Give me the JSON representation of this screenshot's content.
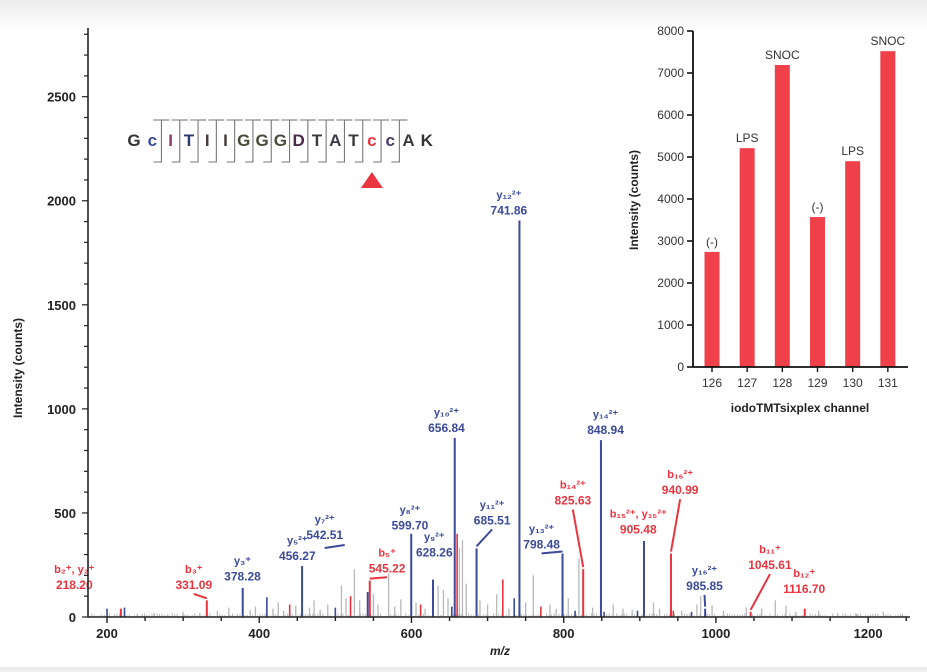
{
  "chart_data": [
    {
      "type": "bar",
      "subtype": "mass-spectrum-stick",
      "title": "",
      "xlabel": "m/z",
      "ylabel": "Intensity (counts)",
      "xlim": [
        175,
        1255
      ],
      "ylim": [
        0,
        2830
      ],
      "x_ticks": [
        200,
        400,
        600,
        800,
        1000,
        1200
      ],
      "x_minor_step": 50,
      "y_ticks": [
        0,
        500,
        1000,
        1500,
        2000,
        2500
      ],
      "y_minor_step": 100,
      "grid": false,
      "colors": {
        "y_ion": "#3b4a9a",
        "b_ion": "#e8353f",
        "noise": "#b8b8b8",
        "axis": "#222222"
      },
      "peptide": {
        "residues": [
          "G",
          "c",
          "I",
          "T",
          "I",
          "I",
          "G",
          "G",
          "G",
          "D",
          "T",
          "A",
          "T",
          "c",
          "c",
          "A",
          "K"
        ],
        "highlight_index": 13,
        "highlight_color": "#e8353f",
        "marker": "triangle-up",
        "residue_colors": [
          "#333",
          "#3b4a9a",
          "#8a3a6a",
          "#2a3a6a",
          "#4a3a3a",
          "#4a3a3a",
          "#4a4a3a",
          "#4a4a3a",
          "#4a4a3a",
          "#4a2a4a",
          "#3a3a3a",
          "#3a3a4a",
          "#3a3a3a",
          "#e8353f",
          "#4a3a6a",
          "#3a3a3a",
          "#333"
        ]
      },
      "annotated_peaks": [
        {
          "ion": "b₂⁺, y₂⁺",
          "mz": 218.2,
          "label": "218.20",
          "intensity": 40,
          "series": "b",
          "label_mz": 157,
          "label_int": 135
        },
        {
          "ion": "b₃⁺",
          "mz": 331.09,
          "label": "331.09",
          "intensity": 80,
          "series": "b",
          "label_mz": 314,
          "label_int": 135,
          "leader": true
        },
        {
          "ion": "y₃⁺",
          "mz": 378.28,
          "label": "378.28",
          "intensity": 140,
          "series": "y",
          "label_mz": 378,
          "label_int": 175
        },
        {
          "ion": "y₅²⁺",
          "mz": 456.27,
          "label": "456.27",
          "intensity": 245,
          "series": "y",
          "label_mz": 450,
          "label_int": 275
        },
        {
          "ion": "y₇²⁺",
          "mz": 542.51,
          "label": "542.51",
          "intensity": 120,
          "series": "y",
          "label_mz": 486,
          "label_int": 375,
          "leader": true
        },
        {
          "ion": "b₅⁺",
          "mz": 545.22,
          "label": "545.22",
          "intensity": 175,
          "series": "b",
          "label_mz": 568,
          "label_int": 215,
          "leader": true
        },
        {
          "ion": "y₈²⁺",
          "mz": 599.7,
          "label": "599.70",
          "intensity": 400,
          "series": "y",
          "label_mz": 598,
          "label_int": 420
        },
        {
          "ion": "y₉²⁺",
          "mz": 628.26,
          "label": "628.26",
          "intensity": 180,
          "series": "y",
          "label_mz": 630,
          "label_int": 290
        },
        {
          "ion": "y₁₀²⁺",
          "mz": 656.84,
          "label": "656.84",
          "intensity": 860,
          "series": "y",
          "label_mz": 646,
          "label_int": 890
        },
        {
          "ion": "y₁₁²⁺",
          "mz": 685.51,
          "label": "685.51",
          "intensity": 330,
          "series": "y",
          "label_mz": 706,
          "label_int": 445,
          "leader": true
        },
        {
          "ion": "y₁₂²⁺",
          "mz": 741.86,
          "label": "741.86",
          "intensity": 1905,
          "series": "y",
          "label_mz": 728,
          "label_int": 1935
        },
        {
          "ion": "y₁₃²⁺",
          "mz": 798.48,
          "label": "798.48",
          "intensity": 305,
          "series": "y",
          "label_mz": 771,
          "label_int": 330,
          "leader": true
        },
        {
          "ion": "b₁₄²⁺",
          "mz": 825.63,
          "label": "825.63",
          "intensity": 230,
          "series": "b",
          "label_mz": 812,
          "label_int": 540,
          "leader": true
        },
        {
          "ion": "y₁₄²⁺",
          "mz": 848.94,
          "label": "848.94",
          "intensity": 850,
          "series": "y",
          "label_mz": 855,
          "label_int": 880
        },
        {
          "ion": "b₁₅²⁺, y₁₅²⁺",
          "mz": 905.48,
          "label": "905.48",
          "intensity": 365,
          "series": "y",
          "label_mz": 898,
          "label_int": 400
        },
        {
          "ion": "b₁₆²⁺",
          "mz": 940.99,
          "label": "940.99",
          "intensity": 305,
          "series": "b",
          "label_mz": 953,
          "label_int": 590,
          "leader": true
        },
        {
          "ion": "y₁₆²⁺",
          "mz": 985.85,
          "label": "985.85",
          "intensity": 40,
          "series": "y",
          "label_mz": 985,
          "label_int": 130,
          "leader": true
        },
        {
          "ion": "b₁₁⁺",
          "mz": 1045.61,
          "label": "1045.61",
          "intensity": 25,
          "series": "b",
          "label_mz": 1071,
          "label_int": 230,
          "leader": true
        },
        {
          "ion": "b₁₂⁺",
          "mz": 1116.7,
          "label": "1116.70",
          "intensity": 40,
          "series": "b",
          "label_mz": 1116,
          "label_int": 115
        }
      ],
      "minor_peaks": [
        {
          "mz": 200,
          "intensity": 40,
          "series": "y"
        },
        {
          "mz": 223,
          "intensity": 45,
          "series": "y"
        },
        {
          "mz": 410,
          "intensity": 95,
          "series": "y"
        },
        {
          "mz": 440,
          "intensity": 60,
          "series": "b"
        },
        {
          "mz": 500,
          "intensity": 45,
          "series": "y"
        },
        {
          "mz": 520,
          "intensity": 100,
          "series": "b"
        },
        {
          "mz": 612,
          "intensity": 60,
          "series": "b"
        },
        {
          "mz": 653,
          "intensity": 50,
          "series": "y"
        },
        {
          "mz": 660,
          "intensity": 400,
          "series": "b"
        },
        {
          "mz": 720,
          "intensity": 180,
          "series": "b"
        },
        {
          "mz": 735,
          "intensity": 90,
          "series": "y"
        },
        {
          "mz": 770,
          "intensity": 50,
          "series": "b"
        },
        {
          "mz": 815,
          "intensity": 30,
          "series": "y"
        },
        {
          "mz": 853,
          "intensity": 25,
          "series": "y"
        },
        {
          "mz": 897,
          "intensity": 30,
          "series": "y"
        },
        {
          "mz": 944,
          "intensity": 30,
          "series": "b"
        },
        {
          "mz": 968,
          "intensity": 25,
          "series": "y"
        }
      ],
      "noise_peaks": [
        {
          "mz": 240,
          "intensity": 15
        },
        {
          "mz": 262,
          "intensity": 20
        },
        {
          "mz": 280,
          "intensity": 12
        },
        {
          "mz": 300,
          "intensity": 25
        },
        {
          "mz": 322,
          "intensity": 18
        },
        {
          "mz": 345,
          "intensity": 30
        },
        {
          "mz": 360,
          "intensity": 45
        },
        {
          "mz": 388,
          "intensity": 35
        },
        {
          "mz": 395,
          "intensity": 50
        },
        {
          "mz": 418,
          "intensity": 40
        },
        {
          "mz": 425,
          "intensity": 70
        },
        {
          "mz": 432,
          "intensity": 30
        },
        {
          "mz": 448,
          "intensity": 55
        },
        {
          "mz": 466,
          "intensity": 45
        },
        {
          "mz": 472,
          "intensity": 80
        },
        {
          "mz": 480,
          "intensity": 35
        },
        {
          "mz": 490,
          "intensity": 60
        },
        {
          "mz": 508,
          "intensity": 150
        },
        {
          "mz": 514,
          "intensity": 90
        },
        {
          "mz": 525,
          "intensity": 230
        },
        {
          "mz": 532,
          "intensity": 80
        },
        {
          "mz": 550,
          "intensity": 110
        },
        {
          "mz": 556,
          "intensity": 60
        },
        {
          "mz": 570,
          "intensity": 210
        },
        {
          "mz": 578,
          "intensity": 50
        },
        {
          "mz": 586,
          "intensity": 85
        },
        {
          "mz": 606,
          "intensity": 70
        },
        {
          "mz": 618,
          "intensity": 40
        },
        {
          "mz": 635,
          "intensity": 150
        },
        {
          "mz": 642,
          "intensity": 130
        },
        {
          "mz": 648,
          "intensity": 90
        },
        {
          "mz": 663,
          "intensity": 330
        },
        {
          "mz": 667,
          "intensity": 370
        },
        {
          "mz": 672,
          "intensity": 160
        },
        {
          "mz": 690,
          "intensity": 80
        },
        {
          "mz": 700,
          "intensity": 60
        },
        {
          "mz": 712,
          "intensity": 110
        },
        {
          "mz": 728,
          "intensity": 40
        },
        {
          "mz": 750,
          "intensity": 70
        },
        {
          "mz": 760,
          "intensity": 200
        },
        {
          "mz": 782,
          "intensity": 60
        },
        {
          "mz": 790,
          "intensity": 40
        },
        {
          "mz": 806,
          "intensity": 90
        },
        {
          "mz": 820,
          "intensity": 280
        },
        {
          "mz": 838,
          "intensity": 45
        },
        {
          "mz": 865,
          "intensity": 60
        },
        {
          "mz": 878,
          "intensity": 40
        },
        {
          "mz": 890,
          "intensity": 35
        },
        {
          "mz": 918,
          "intensity": 70
        },
        {
          "mz": 926,
          "intensity": 40
        },
        {
          "mz": 955,
          "intensity": 30
        },
        {
          "mz": 975,
          "intensity": 60
        },
        {
          "mz": 980,
          "intensity": 100
        },
        {
          "mz": 995,
          "intensity": 55
        },
        {
          "mz": 1010,
          "intensity": 30
        },
        {
          "mz": 1040,
          "intensity": 45
        },
        {
          "mz": 1060,
          "intensity": 40
        },
        {
          "mz": 1078,
          "intensity": 80
        },
        {
          "mz": 1092,
          "intensity": 55
        },
        {
          "mz": 1105,
          "intensity": 25
        },
        {
          "mz": 1135,
          "intensity": 30
        },
        {
          "mz": 1160,
          "intensity": 20
        },
        {
          "mz": 1185,
          "intensity": 15
        },
        {
          "mz": 1220,
          "intensity": 25
        },
        {
          "mz": 1245,
          "intensity": 15
        }
      ]
    },
    {
      "type": "bar",
      "title": "",
      "xlabel": "iodoTMTsixplex channel",
      "ylabel": "Intensity (counts)",
      "categories": [
        "126",
        "127",
        "128",
        "129",
        "130",
        "131"
      ],
      "values": [
        2740,
        5210,
        7190,
        3570,
        4900,
        7520
      ],
      "bar_labels": [
        "(-)",
        "LPS",
        "SNOC",
        "(-)",
        "LPS",
        "SNOC"
      ],
      "ylim": [
        0,
        8000
      ],
      "y_ticks": [
        0,
        1000,
        2000,
        3000,
        4000,
        5000,
        6000,
        7000,
        8000
      ],
      "bar_color": "#f0414b",
      "grid": false,
      "placement": "top-right inset"
    }
  ]
}
